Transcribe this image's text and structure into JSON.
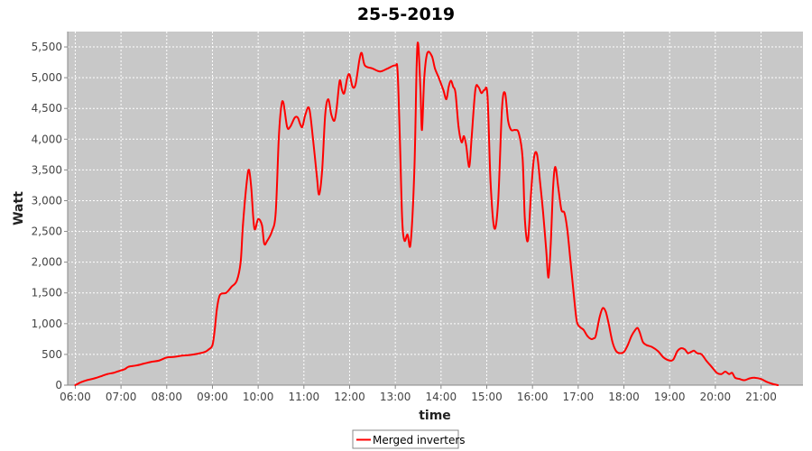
{
  "chart_data": {
    "type": "line",
    "title": "25-5-2019",
    "xlabel": "time",
    "ylabel": "Watt",
    "xlim": [
      "05:50",
      "21:55"
    ],
    "ylim": [
      0,
      5750
    ],
    "x_ticks": [
      "06:00",
      "07:00",
      "08:00",
      "09:00",
      "10:00",
      "11:00",
      "12:00",
      "13:00",
      "14:00",
      "15:00",
      "16:00",
      "17:00",
      "18:00",
      "19:00",
      "20:00",
      "21:00"
    ],
    "y_ticks": [
      {
        "value": 0,
        "label": "0"
      },
      {
        "value": 500,
        "label": "500"
      },
      {
        "value": 1000,
        "label": "1,000"
      },
      {
        "value": 1500,
        "label": "1,500"
      },
      {
        "value": 2000,
        "label": "2,000"
      },
      {
        "value": 2500,
        "label": "2,500"
      },
      {
        "value": 3000,
        "label": "3,000"
      },
      {
        "value": 3500,
        "label": "3,500"
      },
      {
        "value": 4000,
        "label": "4,000"
      },
      {
        "value": 4500,
        "label": "4,500"
      },
      {
        "value": 5000,
        "label": "5,000"
      },
      {
        "value": 5500,
        "label": "5,500"
      }
    ],
    "grid": true,
    "legend_position": "bottom-center",
    "colors": {
      "series": "#ff0000",
      "plot_background": "#c8c8c8",
      "grid": "#ffffff"
    },
    "series": [
      {
        "name": "Merged inverters",
        "points": [
          [
            "06:00",
            0
          ],
          [
            "06:08",
            50
          ],
          [
            "06:15",
            80
          ],
          [
            "06:25",
            110
          ],
          [
            "06:35",
            150
          ],
          [
            "06:42",
            180
          ],
          [
            "06:50",
            200
          ],
          [
            "06:55",
            220
          ],
          [
            "07:00",
            240
          ],
          [
            "07:05",
            260
          ],
          [
            "07:10",
            300
          ],
          [
            "07:20",
            320
          ],
          [
            "07:30",
            350
          ],
          [
            "07:40",
            380
          ],
          [
            "07:50",
            400
          ],
          [
            "08:00",
            450
          ],
          [
            "08:10",
            460
          ],
          [
            "08:20",
            480
          ],
          [
            "08:30",
            490
          ],
          [
            "08:40",
            510
          ],
          [
            "08:50",
            540
          ],
          [
            "08:55",
            580
          ],
          [
            "09:00",
            650
          ],
          [
            "09:03",
            900
          ],
          [
            "09:06",
            1250
          ],
          [
            "09:10",
            1470
          ],
          [
            "09:18",
            1500
          ],
          [
            "09:25",
            1600
          ],
          [
            "09:32",
            1700
          ],
          [
            "09:37",
            2000
          ],
          [
            "09:40",
            2600
          ],
          [
            "09:45",
            3300
          ],
          [
            "09:48",
            3500
          ],
          [
            "09:51",
            3200
          ],
          [
            "09:55",
            2550
          ],
          [
            "10:00",
            2700
          ],
          [
            "10:05",
            2600
          ],
          [
            "10:08",
            2300
          ],
          [
            "10:12",
            2350
          ],
          [
            "10:18",
            2500
          ],
          [
            "10:23",
            2800
          ],
          [
            "10:27",
            4000
          ],
          [
            "10:30",
            4500
          ],
          [
            "10:33",
            4600
          ],
          [
            "10:38",
            4200
          ],
          [
            "10:42",
            4200
          ],
          [
            "10:48",
            4350
          ],
          [
            "10:52",
            4350
          ],
          [
            "10:55",
            4250
          ],
          [
            "10:58",
            4200
          ],
          [
            "11:02",
            4400
          ],
          [
            "11:07",
            4500
          ],
          [
            "11:12",
            4000
          ],
          [
            "11:17",
            3400
          ],
          [
            "11:20",
            3100
          ],
          [
            "11:24",
            3500
          ],
          [
            "11:28",
            4400
          ],
          [
            "11:32",
            4650
          ],
          [
            "11:36",
            4400
          ],
          [
            "11:40",
            4300
          ],
          [
            "11:43",
            4500
          ],
          [
            "11:47",
            4950
          ],
          [
            "11:50",
            4800
          ],
          [
            "11:53",
            4750
          ],
          [
            "11:57",
            5000
          ],
          [
            "12:00",
            5050
          ],
          [
            "12:04",
            4850
          ],
          [
            "12:08",
            4900
          ],
          [
            "12:13",
            5300
          ],
          [
            "12:16",
            5400
          ],
          [
            "12:20",
            5200
          ],
          [
            "12:30",
            5150
          ],
          [
            "12:40",
            5100
          ],
          [
            "12:50",
            5150
          ],
          [
            "13:00",
            5200
          ],
          [
            "13:03",
            5100
          ],
          [
            "13:06",
            4000
          ],
          [
            "13:09",
            2700
          ],
          [
            "13:12",
            2350
          ],
          [
            "13:16",
            2450
          ],
          [
            "13:20",
            2300
          ],
          [
            "13:25",
            3500
          ],
          [
            "13:28",
            5200
          ],
          [
            "13:30",
            5550
          ],
          [
            "13:33",
            4800
          ],
          [
            "13:35",
            4150
          ],
          [
            "13:38",
            5000
          ],
          [
            "13:42",
            5400
          ],
          [
            "13:48",
            5350
          ],
          [
            "13:52",
            5150
          ],
          [
            "13:57",
            5000
          ],
          [
            "14:03",
            4800
          ],
          [
            "14:07",
            4650
          ],
          [
            "14:10",
            4850
          ],
          [
            "14:13",
            4950
          ],
          [
            "14:16",
            4850
          ],
          [
            "14:19",
            4750
          ],
          [
            "14:23",
            4200
          ],
          [
            "14:27",
            3950
          ],
          [
            "14:30",
            4050
          ],
          [
            "14:33",
            3900
          ],
          [
            "14:37",
            3550
          ],
          [
            "14:40",
            4000
          ],
          [
            "14:45",
            4800
          ],
          [
            "14:49",
            4850
          ],
          [
            "14:53",
            4750
          ],
          [
            "14:57",
            4800
          ],
          [
            "15:01",
            4700
          ],
          [
            "15:05",
            3300
          ],
          [
            "15:10",
            2550
          ],
          [
            "15:15",
            3000
          ],
          [
            "15:20",
            4500
          ],
          [
            "15:24",
            4750
          ],
          [
            "15:28",
            4300
          ],
          [
            "15:32",
            4150
          ],
          [
            "15:37",
            4150
          ],
          [
            "15:42",
            4100
          ],
          [
            "15:47",
            3700
          ],
          [
            "15:50",
            2700
          ],
          [
            "15:54",
            2350
          ],
          [
            "15:58",
            3100
          ],
          [
            "16:02",
            3700
          ],
          [
            "16:06",
            3750
          ],
          [
            "16:10",
            3300
          ],
          [
            "16:14",
            2800
          ],
          [
            "16:18",
            2200
          ],
          [
            "16:21",
            1750
          ],
          [
            "16:24",
            2300
          ],
          [
            "16:27",
            3200
          ],
          [
            "16:30",
            3550
          ],
          [
            "16:34",
            3200
          ],
          [
            "16:38",
            2850
          ],
          [
            "16:42",
            2800
          ],
          [
            "16:46",
            2500
          ],
          [
            "16:50",
            2000
          ],
          [
            "16:54",
            1500
          ],
          [
            "16:58",
            1050
          ],
          [
            "17:02",
            950
          ],
          [
            "17:07",
            900
          ],
          [
            "17:12",
            800
          ],
          [
            "17:17",
            750
          ],
          [
            "17:20",
            760
          ],
          [
            "17:23",
            800
          ],
          [
            "17:28",
            1100
          ],
          [
            "17:32",
            1250
          ],
          [
            "17:36",
            1200
          ],
          [
            "17:40",
            1000
          ],
          [
            "17:45",
            700
          ],
          [
            "17:50",
            550
          ],
          [
            "17:55",
            520
          ],
          [
            "18:00",
            540
          ],
          [
            "18:05",
            650
          ],
          [
            "18:10",
            800
          ],
          [
            "18:15",
            900
          ],
          [
            "18:18",
            930
          ],
          [
            "18:21",
            850
          ],
          [
            "18:25",
            700
          ],
          [
            "18:30",
            650
          ],
          [
            "18:37",
            620
          ],
          [
            "18:45",
            550
          ],
          [
            "18:52",
            450
          ],
          [
            "19:00",
            400
          ],
          [
            "19:05",
            420
          ],
          [
            "19:10",
            550
          ],
          [
            "19:15",
            600
          ],
          [
            "19:20",
            580
          ],
          [
            "19:24",
            520
          ],
          [
            "19:28",
            540
          ],
          [
            "19:32",
            560
          ],
          [
            "19:36",
            520
          ],
          [
            "19:42",
            500
          ],
          [
            "19:48",
            400
          ],
          [
            "19:55",
            300
          ],
          [
            "20:02",
            200
          ],
          [
            "20:08",
            180
          ],
          [
            "20:13",
            220
          ],
          [
            "20:18",
            180
          ],
          [
            "20:22",
            200
          ],
          [
            "20:26",
            120
          ],
          [
            "20:32",
            100
          ],
          [
            "20:38",
            80
          ],
          [
            "20:45",
            110
          ],
          [
            "20:52",
            120
          ],
          [
            "21:00",
            100
          ],
          [
            "21:08",
            50
          ],
          [
            "21:15",
            20
          ],
          [
            "21:22",
            0
          ]
        ]
      }
    ]
  }
}
